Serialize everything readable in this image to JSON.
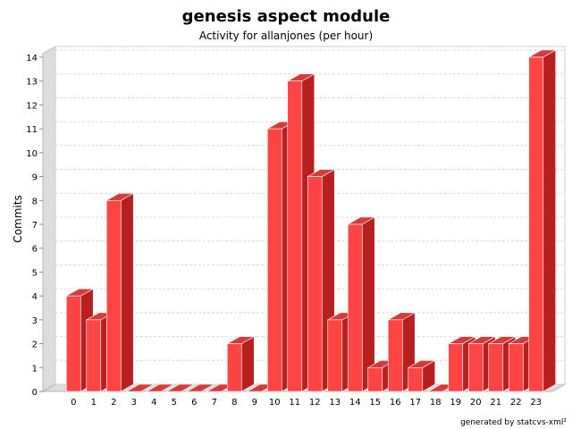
{
  "chart_data": {
    "type": "bar",
    "title": "genesis aspect module",
    "subtitle": "Activity for allanjones (per hour)",
    "xlabel": "",
    "ylabel": "Commits",
    "categories": [
      "0",
      "1",
      "2",
      "3",
      "4",
      "5",
      "6",
      "7",
      "8",
      "9",
      "10",
      "11",
      "12",
      "13",
      "14",
      "15",
      "16",
      "17",
      "18",
      "19",
      "20",
      "21",
      "22",
      "23"
    ],
    "values": [
      4,
      3,
      8,
      0,
      0,
      0,
      0,
      0,
      2,
      0,
      11,
      13,
      9,
      3,
      7,
      1,
      3,
      1,
      0,
      2,
      2,
      2,
      2,
      14
    ],
    "ylim": [
      0,
      14
    ],
    "yticks": [
      "0",
      "1",
      "2",
      "3",
      "4",
      "5",
      "6",
      "7",
      "8",
      "9",
      "10",
      "11",
      "12",
      "13",
      "14"
    ],
    "grid": true,
    "colors": {
      "bar_front": "#ff4444",
      "bar_side": "#b81f1f",
      "bar_top": "#d63a3a",
      "wall": "#dcdcdc",
      "grid": "#d8d8d8"
    },
    "footer": "generated by statcvs-xml²"
  }
}
